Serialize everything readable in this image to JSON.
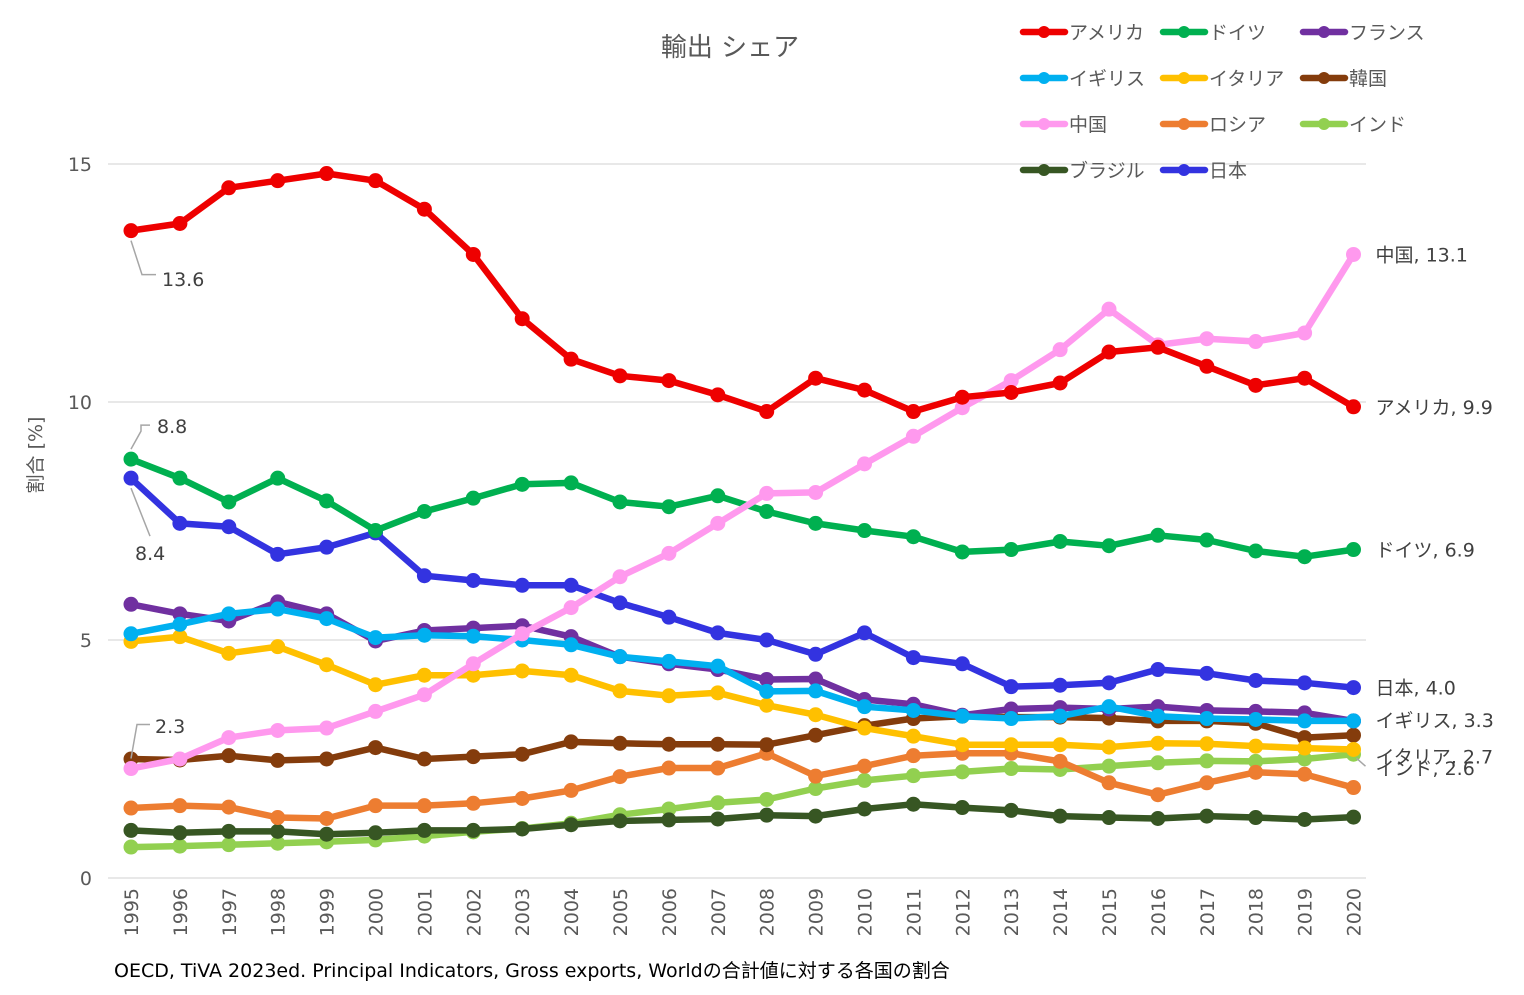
{
  "chart_data": {
    "type": "line",
    "title": "輸出 シェア",
    "xlabel": "",
    "ylabel": "割合 [%]",
    "ylim": [
      0,
      15
    ],
    "yticks": [
      0,
      5,
      10,
      15
    ],
    "grid": true,
    "legend_position": "top-right",
    "source_note": "OECD, TiVA 2023ed. Principal Indicators, Gross exports, Worldの合計値に対する各国の割合",
    "categories": [
      "1995",
      "1996",
      "1997",
      "1998",
      "1999",
      "2000",
      "2001",
      "2002",
      "2003",
      "2004",
      "2005",
      "2006",
      "2007",
      "2008",
      "2009",
      "2010",
      "2011",
      "2012",
      "2013",
      "2014",
      "2015",
      "2016",
      "2017",
      "2018",
      "2019",
      "2020"
    ],
    "series": [
      {
        "name": "インド",
        "color": "#92d050",
        "values": [
          0.65,
          0.67,
          0.7,
          0.73,
          0.76,
          0.8,
          0.88,
          0.97,
          1.04,
          1.15,
          1.33,
          1.45,
          1.58,
          1.65,
          1.88,
          2.05,
          2.15,
          2.23,
          2.3,
          2.28,
          2.35,
          2.42,
          2.46,
          2.45,
          2.5,
          2.6
        ]
      },
      {
        "name": "ブラジル",
        "color": "#375623",
        "values": [
          1.0,
          0.95,
          0.98,
          0.98,
          0.92,
          0.95,
          1.0,
          1.0,
          1.03,
          1.12,
          1.2,
          1.22,
          1.24,
          1.32,
          1.3,
          1.45,
          1.55,
          1.48,
          1.42,
          1.3,
          1.27,
          1.25,
          1.3,
          1.27,
          1.23,
          1.28
        ]
      },
      {
        "name": "ロシア",
        "color": "#ed7d31",
        "values": [
          1.47,
          1.52,
          1.49,
          1.27,
          1.25,
          1.52,
          1.52,
          1.57,
          1.67,
          1.84,
          2.13,
          2.31,
          2.31,
          2.62,
          2.14,
          2.35,
          2.57,
          2.62,
          2.62,
          2.45,
          2.0,
          1.75,
          2.0,
          2.22,
          2.18,
          1.9
        ]
      },
      {
        "name": "韓国",
        "color": "#843c0c",
        "values": [
          2.5,
          2.48,
          2.57,
          2.47,
          2.5,
          2.74,
          2.5,
          2.55,
          2.6,
          2.86,
          2.83,
          2.81,
          2.81,
          2.8,
          3.0,
          3.2,
          3.35,
          3.4,
          3.38,
          3.38,
          3.36,
          3.3,
          3.3,
          3.25,
          2.95,
          3.0
        ]
      },
      {
        "name": "イタリア",
        "color": "#ffc000",
        "values": [
          4.97,
          5.07,
          4.72,
          4.86,
          4.48,
          4.06,
          4.26,
          4.26,
          4.35,
          4.26,
          3.93,
          3.83,
          3.89,
          3.63,
          3.43,
          3.15,
          2.98,
          2.8,
          2.8,
          2.8,
          2.75,
          2.83,
          2.82,
          2.77,
          2.73,
          2.7
        ]
      },
      {
        "name": "フランス",
        "color": "#7030a0",
        "values": [
          5.75,
          5.55,
          5.4,
          5.8,
          5.55,
          4.98,
          5.2,
          5.25,
          5.3,
          5.07,
          4.65,
          4.5,
          4.38,
          4.17,
          4.18,
          3.75,
          3.65,
          3.42,
          3.55,
          3.58,
          3.55,
          3.6,
          3.52,
          3.5,
          3.47,
          3.3
        ]
      },
      {
        "name": "イギリス",
        "color": "#00b0f0",
        "values": [
          5.13,
          5.33,
          5.55,
          5.65,
          5.45,
          5.05,
          5.1,
          5.08,
          5.0,
          4.9,
          4.65,
          4.55,
          4.45,
          3.92,
          3.93,
          3.6,
          3.52,
          3.4,
          3.35,
          3.4,
          3.6,
          3.4,
          3.35,
          3.33,
          3.3,
          3.3
        ]
      },
      {
        "name": "日本",
        "color": "#3333e0",
        "values": [
          8.4,
          7.45,
          7.38,
          6.8,
          6.95,
          7.25,
          6.35,
          6.25,
          6.15,
          6.15,
          5.78,
          5.48,
          5.15,
          5.0,
          4.7,
          5.15,
          4.63,
          4.5,
          4.02,
          4.05,
          4.1,
          4.38,
          4.3,
          4.15,
          4.1,
          4.0
        ]
      },
      {
        "name": "ドイツ",
        "color": "#00b050",
        "values": [
          8.8,
          8.4,
          7.9,
          8.4,
          7.92,
          7.3,
          7.7,
          7.98,
          8.27,
          8.3,
          7.9,
          7.8,
          8.03,
          7.7,
          7.45,
          7.3,
          7.17,
          6.85,
          6.9,
          7.07,
          6.98,
          7.2,
          7.1,
          6.87,
          6.75,
          6.9
        ]
      },
      {
        "name": "中国",
        "color": "#ff99ee",
        "values": [
          2.3,
          2.5,
          2.95,
          3.1,
          3.15,
          3.5,
          3.85,
          4.5,
          5.13,
          5.68,
          6.33,
          6.82,
          7.45,
          8.08,
          8.1,
          8.7,
          9.28,
          9.88,
          10.45,
          11.1,
          11.95,
          11.2,
          11.33,
          11.27,
          11.45,
          13.1
        ]
      },
      {
        "name": "アメリカ",
        "color": "#ee0000",
        "values": [
          13.6,
          13.75,
          14.5,
          14.65,
          14.8,
          14.65,
          14.05,
          13.1,
          11.75,
          10.9,
          10.55,
          10.45,
          10.15,
          9.8,
          10.5,
          10.25,
          9.8,
          10.1,
          10.2,
          10.4,
          11.05,
          11.15,
          10.75,
          10.35,
          10.5,
          9.9
        ]
      }
    ],
    "legend": [
      [
        "アメリカ",
        "ドイツ",
        "フランス"
      ],
      [
        "イギリス",
        "イタリア",
        "韓国"
      ],
      [
        "中国",
        "ロシア",
        "インド"
      ],
      [
        "ブラジル",
        "日本"
      ]
    ],
    "start_labels": [
      {
        "series": "アメリカ",
        "text": "13.6"
      },
      {
        "series": "ドイツ",
        "text": "8.8"
      },
      {
        "series": "日本",
        "text": "8.4"
      },
      {
        "series": "中国",
        "text": "2.3"
      }
    ],
    "end_labels": [
      {
        "series": "中国",
        "text": "中国, 13.1"
      },
      {
        "series": "アメリカ",
        "text": "アメリカ, 9.9"
      },
      {
        "series": "ドイツ",
        "text": "ドイツ, 6.9"
      },
      {
        "series": "日本",
        "text": "日本, 4.0"
      },
      {
        "series": "イギリス",
        "text": "イギリス, 3.3"
      },
      {
        "series": "イタリア",
        "text": "イタリア, 2.7"
      },
      {
        "series": "インド",
        "text": "インド, 2.6"
      }
    ]
  }
}
